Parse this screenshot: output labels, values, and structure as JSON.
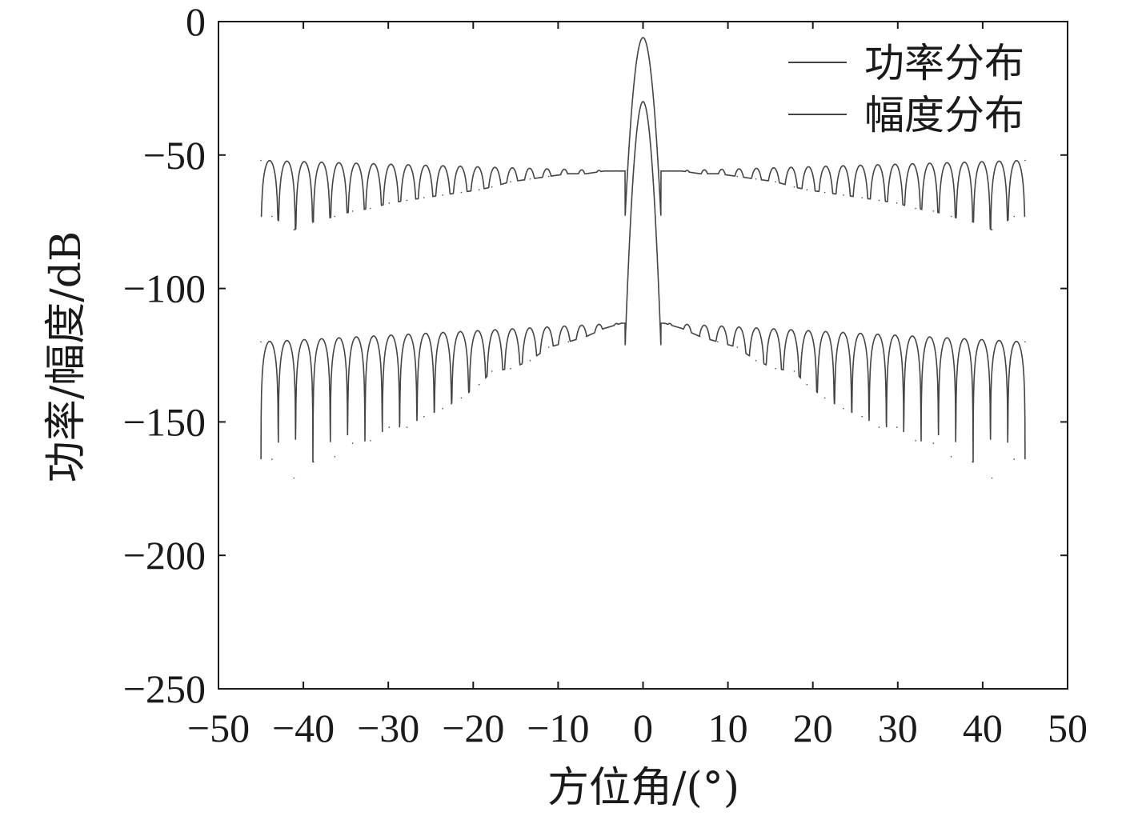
{
  "chart_data": {
    "type": "line",
    "title": "",
    "xlabel": "方位角/(°)",
    "ylabel": "功率/幅度/dB",
    "xlim": [
      -50,
      50
    ],
    "ylim": [
      -250,
      0
    ],
    "x_ticks": [
      -50,
      -40,
      -30,
      -20,
      -10,
      0,
      10,
      20,
      30,
      40,
      50
    ],
    "y_ticks": [
      0,
      -50,
      -100,
      -150,
      -200,
      -250
    ],
    "x_tick_labels": [
      "−50",
      "−40",
      "−30",
      "−20",
      "−10",
      "0",
      "10",
      "20",
      "30",
      "40",
      "50"
    ],
    "y_tick_labels": [
      "0",
      "−50",
      "−100",
      "−150",
      "−200",
      "−250"
    ],
    "x_range": [
      -45,
      45
    ],
    "grid": false,
    "legend_position": "top-right",
    "series": [
      {
        "name": "功率分布",
        "color": "#444444",
        "x": [
          -45,
          -43.7,
          -41.1,
          -38.8,
          -36.3,
          -34.2,
          -32.1,
          -29.9,
          -27.8,
          -25.8,
          -23.6,
          -21.4,
          -19.3,
          -17.8,
          -15.6,
          -13.3,
          -11.1,
          -8.8,
          -6.7,
          -4.6,
          -2.5,
          0,
          2.5,
          4.6,
          6.7,
          8.8,
          11.1,
          13.3,
          15.6,
          17.8,
          19.3,
          21.4,
          23.6,
          25.8,
          27.8,
          29.9,
          32.1,
          34.2,
          36.3,
          38.8,
          41.1,
          43.7,
          45
        ],
        "values": [
          -120,
          -164,
          -171,
          -165,
          -163,
          -158,
          -157,
          -152,
          -152,
          -148,
          -145,
          -141,
          -136,
          -131,
          -130,
          -127,
          -122,
          -120,
          -118,
          -115,
          -113,
          -30,
          -113,
          -115,
          -118,
          -120,
          -122,
          -127,
          -130,
          -131,
          -136,
          -141,
          -145,
          -148,
          -152,
          -152,
          -157,
          -158,
          -163,
          -165,
          -171,
          -164,
          -120
        ]
      },
      {
        "name": "幅度分布",
        "color": "#444444",
        "x": [
          -45,
          -43.7,
          -41.1,
          -38.8,
          -36.3,
          -34.2,
          -32.1,
          -29.9,
          -27.8,
          -25.8,
          -23.6,
          -21.4,
          -19.3,
          -17.8,
          -15.6,
          -13.3,
          -11.1,
          -8.8,
          -6.7,
          -4.6,
          -2.5,
          0,
          2.5,
          4.6,
          6.7,
          8.8,
          11.1,
          13.3,
          15.6,
          17.8,
          19.3,
          21.4,
          23.6,
          25.8,
          27.8,
          29.9,
          32.1,
          34.2,
          36.3,
          38.8,
          41.1,
          43.7,
          45
        ],
        "values": [
          -52,
          -73,
          -78,
          -75,
          -73,
          -71,
          -70,
          -68,
          -67,
          -66,
          -65,
          -64,
          -63,
          -62,
          -60,
          -59,
          -58,
          -57,
          -57,
          -56,
          -56,
          -6,
          -56,
          -56,
          -57,
          -57,
          -58,
          -59,
          -60,
          -62,
          -63,
          -64,
          -65,
          -66,
          -67,
          -68,
          -70,
          -71,
          -73,
          -75,
          -78,
          -73,
          -52
        ]
      }
    ]
  }
}
